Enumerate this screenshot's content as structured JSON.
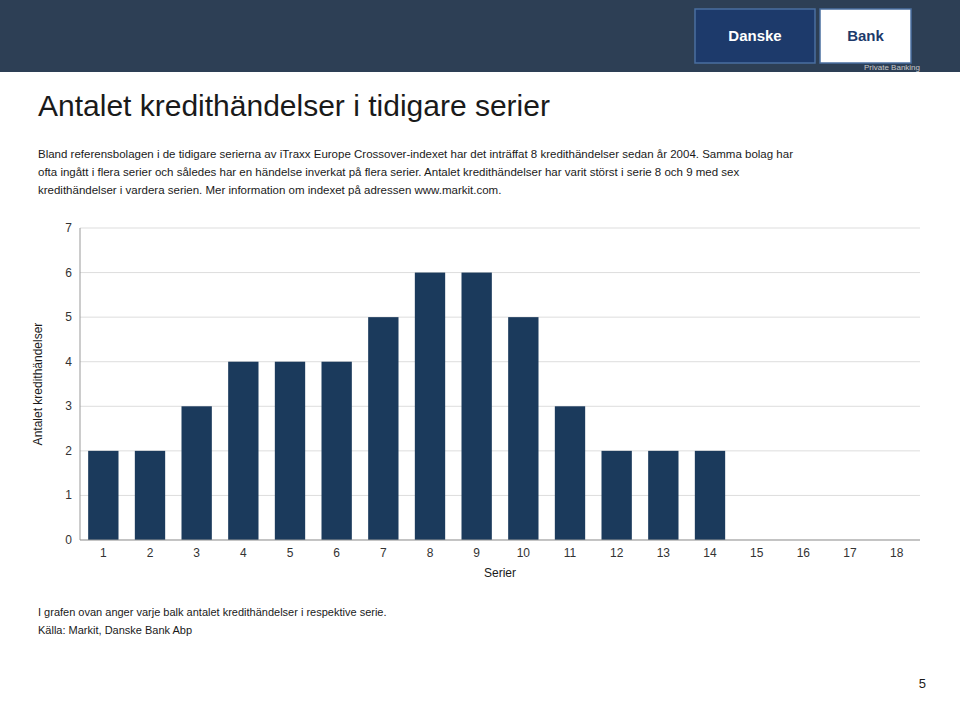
{
  "chart_data": {
    "type": "bar",
    "title": "Antalet kredithändelser i tidigare serier",
    "xlabel": "Serier",
    "ylabel": "Antalet kredithändelser",
    "categories": [
      1,
      2,
      3,
      4,
      5,
      6,
      7,
      8,
      9,
      10,
      11,
      12,
      13,
      14,
      15,
      16,
      17,
      18
    ],
    "values": [
      2,
      2,
      3,
      4,
      4,
      4,
      5,
      6,
      6,
      5,
      3,
      2,
      2,
      2,
      0,
      0,
      0,
      0
    ],
    "color": "#1b3a5c",
    "ylim": [
      0,
      7
    ],
    "yticks": [
      0,
      1,
      2,
      3,
      4,
      5,
      6,
      7
    ],
    "grid": true,
    "annotations": [
      "Danske",
      "Bank",
      "Private Banking",
      "Bland referensbolagen i de tidigare serierna av iTraxx Europe Crossover-indexet har det inträffat 8 kredithändelser sedan år 2004. Samma bolag har",
      "ofta ingått i flera serier och således har en händelse inverkat på flera serier. Antalet kredithändelser har varit störst i serie 8 och 9 med sex",
      "kredithändelser i vardera serien. Mer information om indexet på adressen www.markit.com.",
      "I grafen ovan anger varje balk antalet kredithändelser i respektive serie.",
      "Källa: Markit, Danske Bank Abp",
      "5"
    ]
  }
}
